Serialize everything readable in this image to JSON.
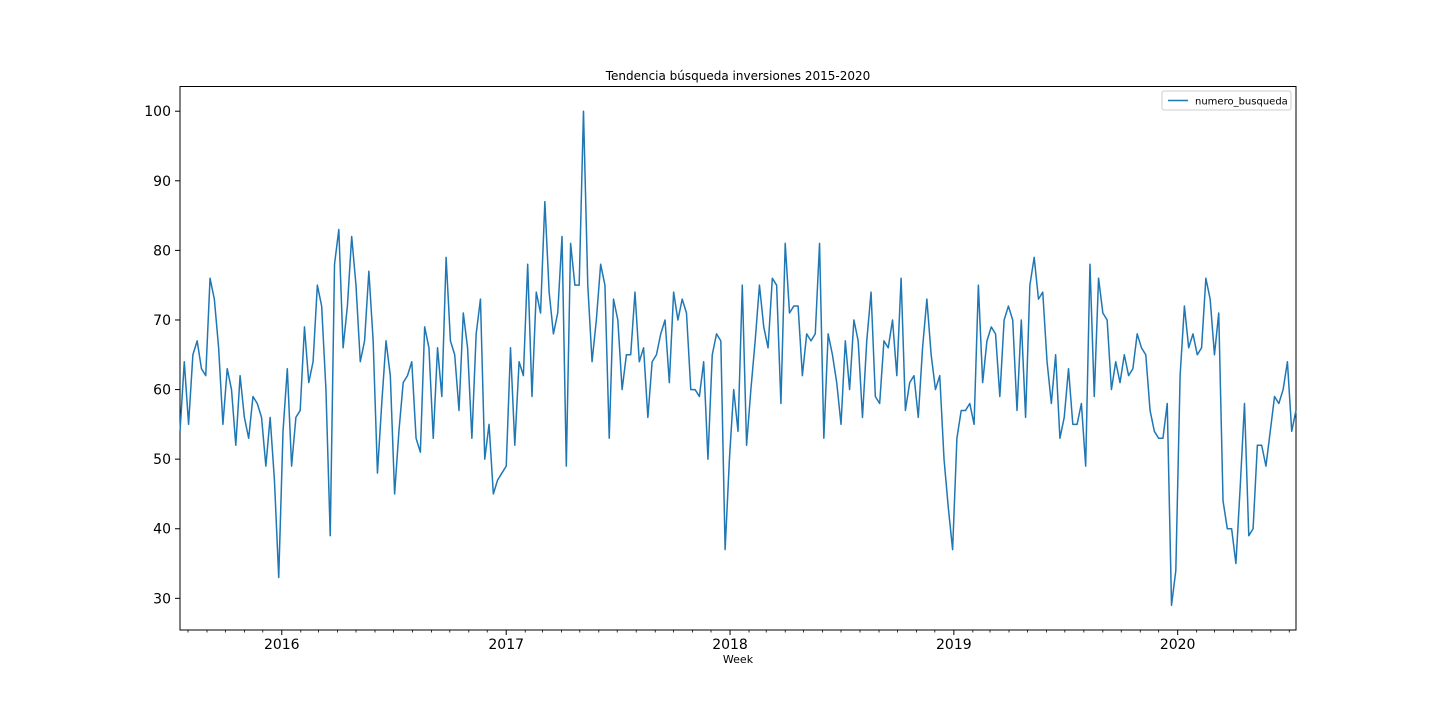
{
  "chart_data": {
    "type": "line",
    "title": "Tendencia búsqueda inversiones 2015-2020",
    "xlabel": "Week",
    "ylabel": "",
    "grid": false,
    "legend_position": "top-right",
    "xlim": [
      "2015-07-19",
      "2020-07-12"
    ],
    "ylim": [
      25.45,
      103.55
    ],
    "y_ticks": [
      30,
      40,
      50,
      60,
      70,
      80,
      90,
      100
    ],
    "x_major_ticks": [
      {
        "label": "2016",
        "date": "2016-01-01"
      },
      {
        "label": "2017",
        "date": "2017-01-01"
      },
      {
        "label": "2018",
        "date": "2018-01-01"
      },
      {
        "label": "2019",
        "date": "2019-01-01"
      },
      {
        "label": "2020",
        "date": "2020-01-01"
      }
    ],
    "x_minor_tick_dates": [
      "2015-08-01",
      "2015-09-01",
      "2015-10-01",
      "2015-11-01",
      "2015-12-01",
      "2016-02-01",
      "2016-03-01",
      "2016-04-01",
      "2016-05-01",
      "2016-06-01",
      "2016-07-01",
      "2016-08-01",
      "2016-09-01",
      "2016-10-01",
      "2016-11-01",
      "2016-12-01",
      "2017-02-01",
      "2017-03-01",
      "2017-04-01",
      "2017-05-01",
      "2017-06-01",
      "2017-07-01",
      "2017-08-01",
      "2017-09-01",
      "2017-10-01",
      "2017-11-01",
      "2017-12-01",
      "2018-02-01",
      "2018-03-01",
      "2018-04-01",
      "2018-05-01",
      "2018-06-01",
      "2018-07-01",
      "2018-08-01",
      "2018-09-01",
      "2018-10-01",
      "2018-11-01",
      "2018-12-01",
      "2019-02-01",
      "2019-03-01",
      "2019-04-01",
      "2019-05-01",
      "2019-06-01",
      "2019-07-01",
      "2019-08-01",
      "2019-09-01",
      "2019-10-01",
      "2019-11-01",
      "2019-12-01",
      "2020-02-01",
      "2020-03-01",
      "2020-04-01",
      "2020-05-01",
      "2020-06-01",
      "2020-07-01"
    ],
    "series": [
      {
        "name": "numero_busqueda",
        "color": "#1f77b4",
        "start_week": "2015-07-19",
        "interval": "week",
        "values": [
          54,
          64,
          55,
          65,
          67,
          63,
          62,
          76,
          73,
          66,
          55,
          63,
          60,
          52,
          62,
          56,
          53,
          59,
          58,
          56,
          49,
          56,
          47,
          33,
          54,
          63,
          49,
          56,
          57,
          69,
          61,
          64,
          75,
          72,
          60,
          39,
          78,
          83,
          66,
          72,
          82,
          75,
          64,
          67,
          77,
          67,
          48,
          58,
          67,
          62,
          45,
          54,
          61,
          62,
          64,
          53,
          51,
          69,
          66,
          53,
          66,
          59,
          79,
          67,
          65,
          57,
          71,
          66,
          53,
          68,
          73,
          50,
          55,
          45,
          47,
          48,
          49,
          66,
          52,
          64,
          62,
          78,
          59,
          74,
          71,
          87,
          74,
          68,
          71,
          82,
          49,
          81,
          75,
          75,
          100,
          75,
          64,
          70,
          78,
          75,
          53,
          73,
          70,
          60,
          65,
          65,
          74,
          64,
          66,
          56,
          64,
          65,
          68,
          70,
          61,
          74,
          70,
          73,
          71,
          60,
          60,
          59,
          64,
          50,
          65,
          68,
          67,
          37,
          50,
          60,
          54,
          75,
          52,
          60,
          67,
          75,
          69,
          66,
          76,
          75,
          58,
          81,
          71,
          72,
          72,
          62,
          68,
          67,
          68,
          81,
          53,
          68,
          65,
          61,
          55,
          67,
          60,
          70,
          67,
          56,
          67,
          74,
          59,
          58,
          67,
          66,
          70,
          62,
          76,
          57,
          61,
          62,
          56,
          66,
          73,
          65,
          60,
          62,
          50,
          43,
          37,
          53,
          57,
          57,
          58,
          55,
          75,
          61,
          67,
          69,
          68,
          59,
          70,
          72,
          70,
          57,
          70,
          56,
          75,
          79,
          73,
          74,
          64,
          58,
          65,
          53,
          56,
          63,
          55,
          55,
          58,
          49,
          78,
          59,
          76,
          71,
          70,
          60,
          64,
          61,
          65,
          62,
          63,
          68,
          66,
          65,
          57,
          54,
          53,
          53,
          58,
          29,
          34,
          62,
          72,
          66,
          68,
          65,
          66,
          76,
          73,
          65,
          71,
          44,
          40,
          40,
          35,
          46,
          58,
          39,
          40,
          52,
          52,
          49,
          54,
          59,
          58,
          60,
          64,
          54,
          57
        ]
      }
    ]
  }
}
